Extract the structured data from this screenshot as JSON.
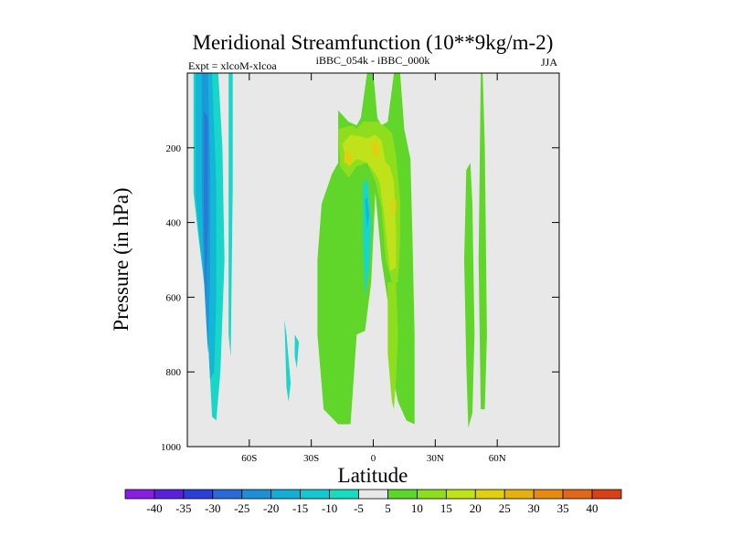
{
  "chart_data": {
    "type": "heatmap",
    "title": "Meridional Streamfunction (10**9kg/m-2)",
    "left_subtitle": "Expt = xlcoM-xlcoa",
    "center_subtitle": "iBBC_054k - iBBC_000k",
    "right_subtitle": "JJA",
    "xlabel": "Latitude",
    "ylabel": "Pressure (in hPa)",
    "xlim": [
      -90,
      90
    ],
    "ylim": [
      0,
      1000
    ],
    "y_inverted": true,
    "x_ticks": [
      {
        "value": -60,
        "label": "60S"
      },
      {
        "value": -30,
        "label": "30S"
      },
      {
        "value": 0,
        "label": "0"
      },
      {
        "value": 30,
        "label": "30N"
      },
      {
        "value": 60,
        "label": "60N"
      }
    ],
    "y_ticks": [
      {
        "value": 200,
        "label": "200"
      },
      {
        "value": 400,
        "label": "400"
      },
      {
        "value": 600,
        "label": "600"
      },
      {
        "value": 800,
        "label": "800"
      },
      {
        "value": 1000,
        "label": "1000"
      }
    ],
    "background_color": "#e8e8e8",
    "colorbar": {
      "levels": [
        "-40",
        "-35",
        "-30",
        "-25",
        "-20",
        "-15",
        "-10",
        "-5",
        "5",
        "10",
        "15",
        "20",
        "25",
        "30",
        "35",
        "40"
      ],
      "colors": [
        "#8a1ee0",
        "#5a22d8",
        "#2a3fd6",
        "#2a6ad6",
        "#1e8fd6",
        "#12aed6",
        "#14c7d0",
        "#18dcc0",
        "#e8e8e8",
        "#5cd62a",
        "#8fde1e",
        "#bfe21a",
        "#e0d010",
        "#e6b010",
        "#e68a12",
        "#e06818",
        "#d8401a"
      ]
    },
    "regions": [
      {
        "name": "southern-polar-negative-outer",
        "level": "-10",
        "color": "#18d6c8",
        "points": [
          [
            -87,
            0
          ],
          [
            -75,
            0
          ],
          [
            -73,
            200
          ],
          [
            -72,
            500
          ],
          [
            -74,
            800
          ],
          [
            -76,
            930
          ],
          [
            -78,
            920
          ],
          [
            -81,
            600
          ],
          [
            -85,
            420
          ],
          [
            -87,
            320
          ]
        ]
      },
      {
        "name": "southern-polar-negative-mid",
        "level": "-15",
        "color": "#12b7d8",
        "points": [
          [
            -86,
            0
          ],
          [
            -78,
            0
          ],
          [
            -76,
            300
          ],
          [
            -76,
            600
          ],
          [
            -77,
            800
          ],
          [
            -79,
            820
          ],
          [
            -81,
            600
          ],
          [
            -84,
            450
          ],
          [
            -86,
            330
          ]
        ]
      },
      {
        "name": "southern-polar-negative-inner",
        "level": "-20",
        "color": "#1a98d8",
        "points": [
          [
            -83,
            0
          ],
          [
            -80,
            0
          ],
          [
            -79,
            250
          ],
          [
            -79,
            550
          ],
          [
            -80,
            750
          ],
          [
            -82,
            550
          ],
          [
            -83,
            300
          ]
        ]
      },
      {
        "name": "southern-polar-negative-core",
        "level": "-25",
        "color": "#2b79d4",
        "points": [
          [
            -82,
            100
          ],
          [
            -80,
            120
          ],
          [
            -80,
            400
          ],
          [
            -81,
            600
          ],
          [
            -82,
            400
          ]
        ]
      },
      {
        "name": "southern-60s-negative",
        "level": "-10",
        "color": "#18d6c8",
        "points": [
          [
            -70,
            0
          ],
          [
            -68,
            0
          ],
          [
            -68,
            300
          ],
          [
            -69,
            760
          ],
          [
            -70,
            700
          ]
        ]
      },
      {
        "name": "southern-40s-negative-a",
        "level": "-5",
        "color": "#18d6c8",
        "points": [
          [
            -43,
            660
          ],
          [
            -42,
            700
          ],
          [
            -40,
            830
          ],
          [
            -41,
            880
          ],
          [
            -42,
            840
          ]
        ]
      },
      {
        "name": "southern-40s-negative-b",
        "level": "-5",
        "color": "#18d6c8",
        "points": [
          [
            -38,
            700
          ],
          [
            -36,
            720
          ],
          [
            -37,
            790
          ],
          [
            -38,
            760
          ]
        ]
      },
      {
        "name": "southern-subtropics-positive",
        "level": "5",
        "color": "#60d62a",
        "points": [
          [
            -27,
            500
          ],
          [
            -25,
            350
          ],
          [
            -20,
            270
          ],
          [
            -17,
            240
          ],
          [
            -17,
            100
          ],
          [
            -12,
            130
          ],
          [
            -8,
            140
          ],
          [
            -6,
            120
          ],
          [
            -3,
            0
          ],
          [
            0,
            0
          ],
          [
            2,
            120
          ],
          [
            4,
            140
          ],
          [
            7,
            130
          ],
          [
            10,
            0
          ],
          [
            13,
            0
          ],
          [
            15,
            150
          ],
          [
            18,
            230
          ],
          [
            19,
            450
          ],
          [
            20,
            700
          ],
          [
            20,
            940
          ],
          [
            16,
            930
          ],
          [
            12,
            880
          ],
          [
            9,
            800
          ],
          [
            8,
            740
          ],
          [
            7,
            610
          ],
          [
            4,
            500
          ],
          [
            1,
            320
          ],
          [
            -1,
            560
          ],
          [
            -4,
            690
          ],
          [
            -8,
            700
          ],
          [
            -11,
            940
          ],
          [
            -17,
            940
          ],
          [
            -24,
            900
          ],
          [
            -27,
            700
          ]
        ]
      },
      {
        "name": "upper-tropics-positive-10",
        "level": "10",
        "color": "#8fde1e",
        "points": [
          [
            -17,
            150
          ],
          [
            -10,
            140
          ],
          [
            -8,
            150
          ],
          [
            -5,
            130
          ],
          [
            -2,
            130
          ],
          [
            2,
            130
          ],
          [
            6,
            145
          ],
          [
            9,
            160
          ],
          [
            11,
            220
          ],
          [
            13,
            340
          ],
          [
            13,
            450
          ],
          [
            12,
            560
          ],
          [
            9,
            560
          ],
          [
            6,
            500
          ],
          [
            4,
            360
          ],
          [
            1,
            290
          ],
          [
            -3,
            240
          ],
          [
            -8,
            250
          ],
          [
            -12,
            280
          ],
          [
            -16,
            250
          ]
        ]
      },
      {
        "name": "upper-tropics-positive-15",
        "level": "15",
        "color": "#bfe21a",
        "points": [
          [
            -15,
            190
          ],
          [
            -11,
            165
          ],
          [
            -6,
            170
          ],
          [
            -3,
            175
          ],
          [
            1,
            165
          ],
          [
            4,
            180
          ],
          [
            6,
            240
          ],
          [
            8,
            250
          ],
          [
            10,
            290
          ],
          [
            11,
            420
          ],
          [
            11,
            520
          ],
          [
            8,
            530
          ],
          [
            7,
            470
          ],
          [
            5,
            370
          ],
          [
            3,
            290
          ],
          [
            1,
            270
          ],
          [
            -3,
            240
          ],
          [
            -8,
            230
          ],
          [
            -12,
            250
          ]
        ]
      },
      {
        "name": "upper-tropics-positive-20-a",
        "level": "20",
        "color": "#e0d010",
        "points": [
          [
            -14,
            215
          ],
          [
            -12,
            205
          ],
          [
            -10,
            225
          ],
          [
            -11,
            245
          ],
          [
            -14,
            240
          ]
        ]
      },
      {
        "name": "upper-tropics-positive-20-b",
        "level": "20",
        "color": "#e0d010",
        "points": [
          [
            -1,
            190
          ],
          [
            1,
            180
          ],
          [
            3,
            200
          ],
          [
            2,
            230
          ],
          [
            0,
            220
          ]
        ]
      },
      {
        "name": "upper-tropics-positive-20-c",
        "level": "20",
        "color": "#e0d010",
        "points": [
          [
            9,
            330
          ],
          [
            11,
            340
          ],
          [
            11,
            370
          ],
          [
            9,
            380
          ]
        ]
      },
      {
        "name": "equatorial-negative",
        "level": "-10",
        "color": "#18d6c8",
        "points": [
          [
            -5,
            300
          ],
          [
            -3,
            280
          ],
          [
            -2,
            330
          ],
          [
            -1,
            400
          ],
          [
            -2,
            520
          ],
          [
            -4,
            600
          ],
          [
            -5,
            450
          ]
        ]
      },
      {
        "name": "equatorial-negative-core",
        "level": "-15",
        "color": "#12b7d8",
        "points": [
          [
            -4,
            340
          ],
          [
            -3,
            330
          ],
          [
            -2,
            380
          ],
          [
            -3,
            420
          ]
        ]
      },
      {
        "name": "northern-tropics-positive-lower",
        "level": "10",
        "color": "#8fde1e",
        "points": [
          [
            7,
            560
          ],
          [
            11,
            560
          ],
          [
            12,
            700
          ],
          [
            11,
            820
          ],
          [
            10,
            900
          ],
          [
            9,
            880
          ],
          [
            7,
            750
          ]
        ]
      },
      {
        "name": "northern-40n-positive-a",
        "level": "5",
        "color": "#60d62a",
        "points": [
          [
            45,
            260
          ],
          [
            47,
            240
          ],
          [
            48,
            350
          ],
          [
            49,
            700
          ],
          [
            48,
            910
          ],
          [
            46,
            950
          ],
          [
            45,
            780
          ],
          [
            44,
            500
          ]
        ]
      },
      {
        "name": "northern-40n-positive-b",
        "level": "5",
        "color": "#60d62a",
        "points": [
          [
            52,
            0
          ],
          [
            53,
            0
          ],
          [
            54,
            200
          ],
          [
            55,
            700
          ],
          [
            54,
            900
          ],
          [
            52,
            900
          ],
          [
            51,
            500
          ]
        ]
      }
    ]
  }
}
